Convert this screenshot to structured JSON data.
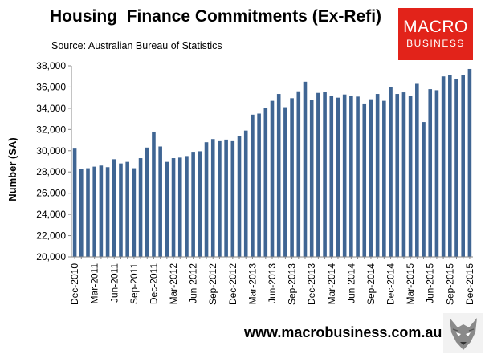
{
  "header": {
    "title": "Housing  Finance Commitments (Ex-Refi)",
    "subtitle": "Source: Australian Bureau of Statistics"
  },
  "logo": {
    "line1": "MACRO",
    "line2": "BUSINESS",
    "color": "#e2231a"
  },
  "footer": {
    "website": "www.macrobusiness.com.au"
  },
  "chart_data": {
    "type": "bar",
    "ylabel": "Number (SA)",
    "xlabel": "",
    "ylim": [
      20000,
      38000
    ],
    "yticks": [
      "20,000",
      "22,000",
      "24,000",
      "26,000",
      "28,000",
      "30,000",
      "32,000",
      "34,000",
      "36,000",
      "38,000"
    ],
    "bar_color": "#3f6593",
    "grid": false,
    "tick_every": 3,
    "categories": [
      "Dec-2010",
      "Jan-2011",
      "Feb-2011",
      "Mar-2011",
      "Apr-2011",
      "May-2011",
      "Jun-2011",
      "Jul-2011",
      "Aug-2011",
      "Sep-2011",
      "Oct-2011",
      "Nov-2011",
      "Dec-2011",
      "Jan-2012",
      "Feb-2012",
      "Mar-2012",
      "Apr-2012",
      "May-2012",
      "Jun-2012",
      "Jul-2012",
      "Aug-2012",
      "Sep-2012",
      "Oct-2012",
      "Nov-2012",
      "Dec-2012",
      "Jan-2013",
      "Feb-2013",
      "Mar-2013",
      "Apr-2013",
      "May-2013",
      "Jun-2013",
      "Jul-2013",
      "Aug-2013",
      "Sep-2013",
      "Oct-2013",
      "Nov-2013",
      "Dec-2013",
      "Jan-2014",
      "Feb-2014",
      "Mar-2014",
      "Apr-2014",
      "May-2014",
      "Jun-2014",
      "Jul-2014",
      "Aug-2014",
      "Sep-2014",
      "Oct-2014",
      "Nov-2014",
      "Dec-2014",
      "Jan-2015",
      "Feb-2015",
      "Mar-2015",
      "Apr-2015",
      "May-2015",
      "Jun-2015",
      "Jul-2015",
      "Aug-2015",
      "Sep-2015",
      "Oct-2015",
      "Nov-2015",
      "Dec-2015"
    ],
    "values": [
      30200,
      28300,
      28350,
      28500,
      28600,
      28450,
      29200,
      28800,
      28950,
      28350,
      29300,
      30300,
      31800,
      30400,
      28950,
      29300,
      29350,
      29500,
      29900,
      29950,
      30800,
      31100,
      30900,
      31050,
      30900,
      31400,
      31900,
      33400,
      33500,
      34000,
      34700,
      35350,
      34100,
      34950,
      35600,
      36500,
      34750,
      35450,
      35550,
      35150,
      35000,
      35300,
      35200,
      35100,
      34450,
      34850,
      35350,
      34700,
      36000,
      35350,
      35500,
      35200,
      36300,
      32700,
      35800,
      35700,
      37000,
      37150,
      36750,
      37100,
      37700
    ]
  }
}
